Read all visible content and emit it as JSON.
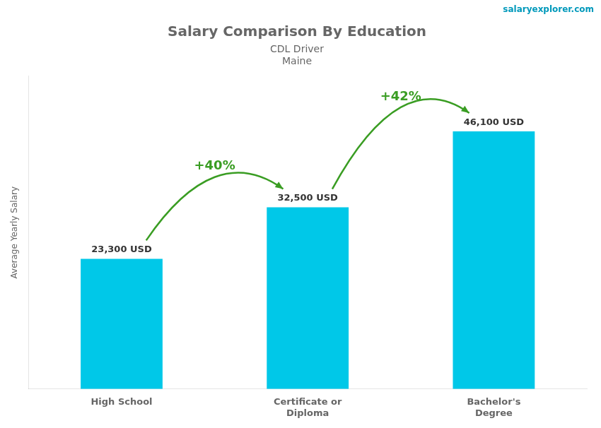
{
  "chart_data": {
    "type": "bar",
    "title": "Salary Comparison By Education",
    "subtitle": [
      "CDL Driver",
      "Maine"
    ],
    "watermark": "salaryexplorer.com",
    "y_label": "Average Yearly Salary",
    "categories": [
      "High School",
      "Certificate or\nDiploma",
      "Bachelor's\nDegree"
    ],
    "values": [
      23300,
      32500,
      46100
    ],
    "value_labels": [
      "23,300 USD",
      "32,500 USD",
      "46,100 USD"
    ],
    "data_labels": true,
    "annotations": [
      "+40%",
      "+42%"
    ],
    "color": "#00c8e8",
    "ylim": [
      0,
      56000
    ],
    "grid": false,
    "tick_labels": "x"
  }
}
